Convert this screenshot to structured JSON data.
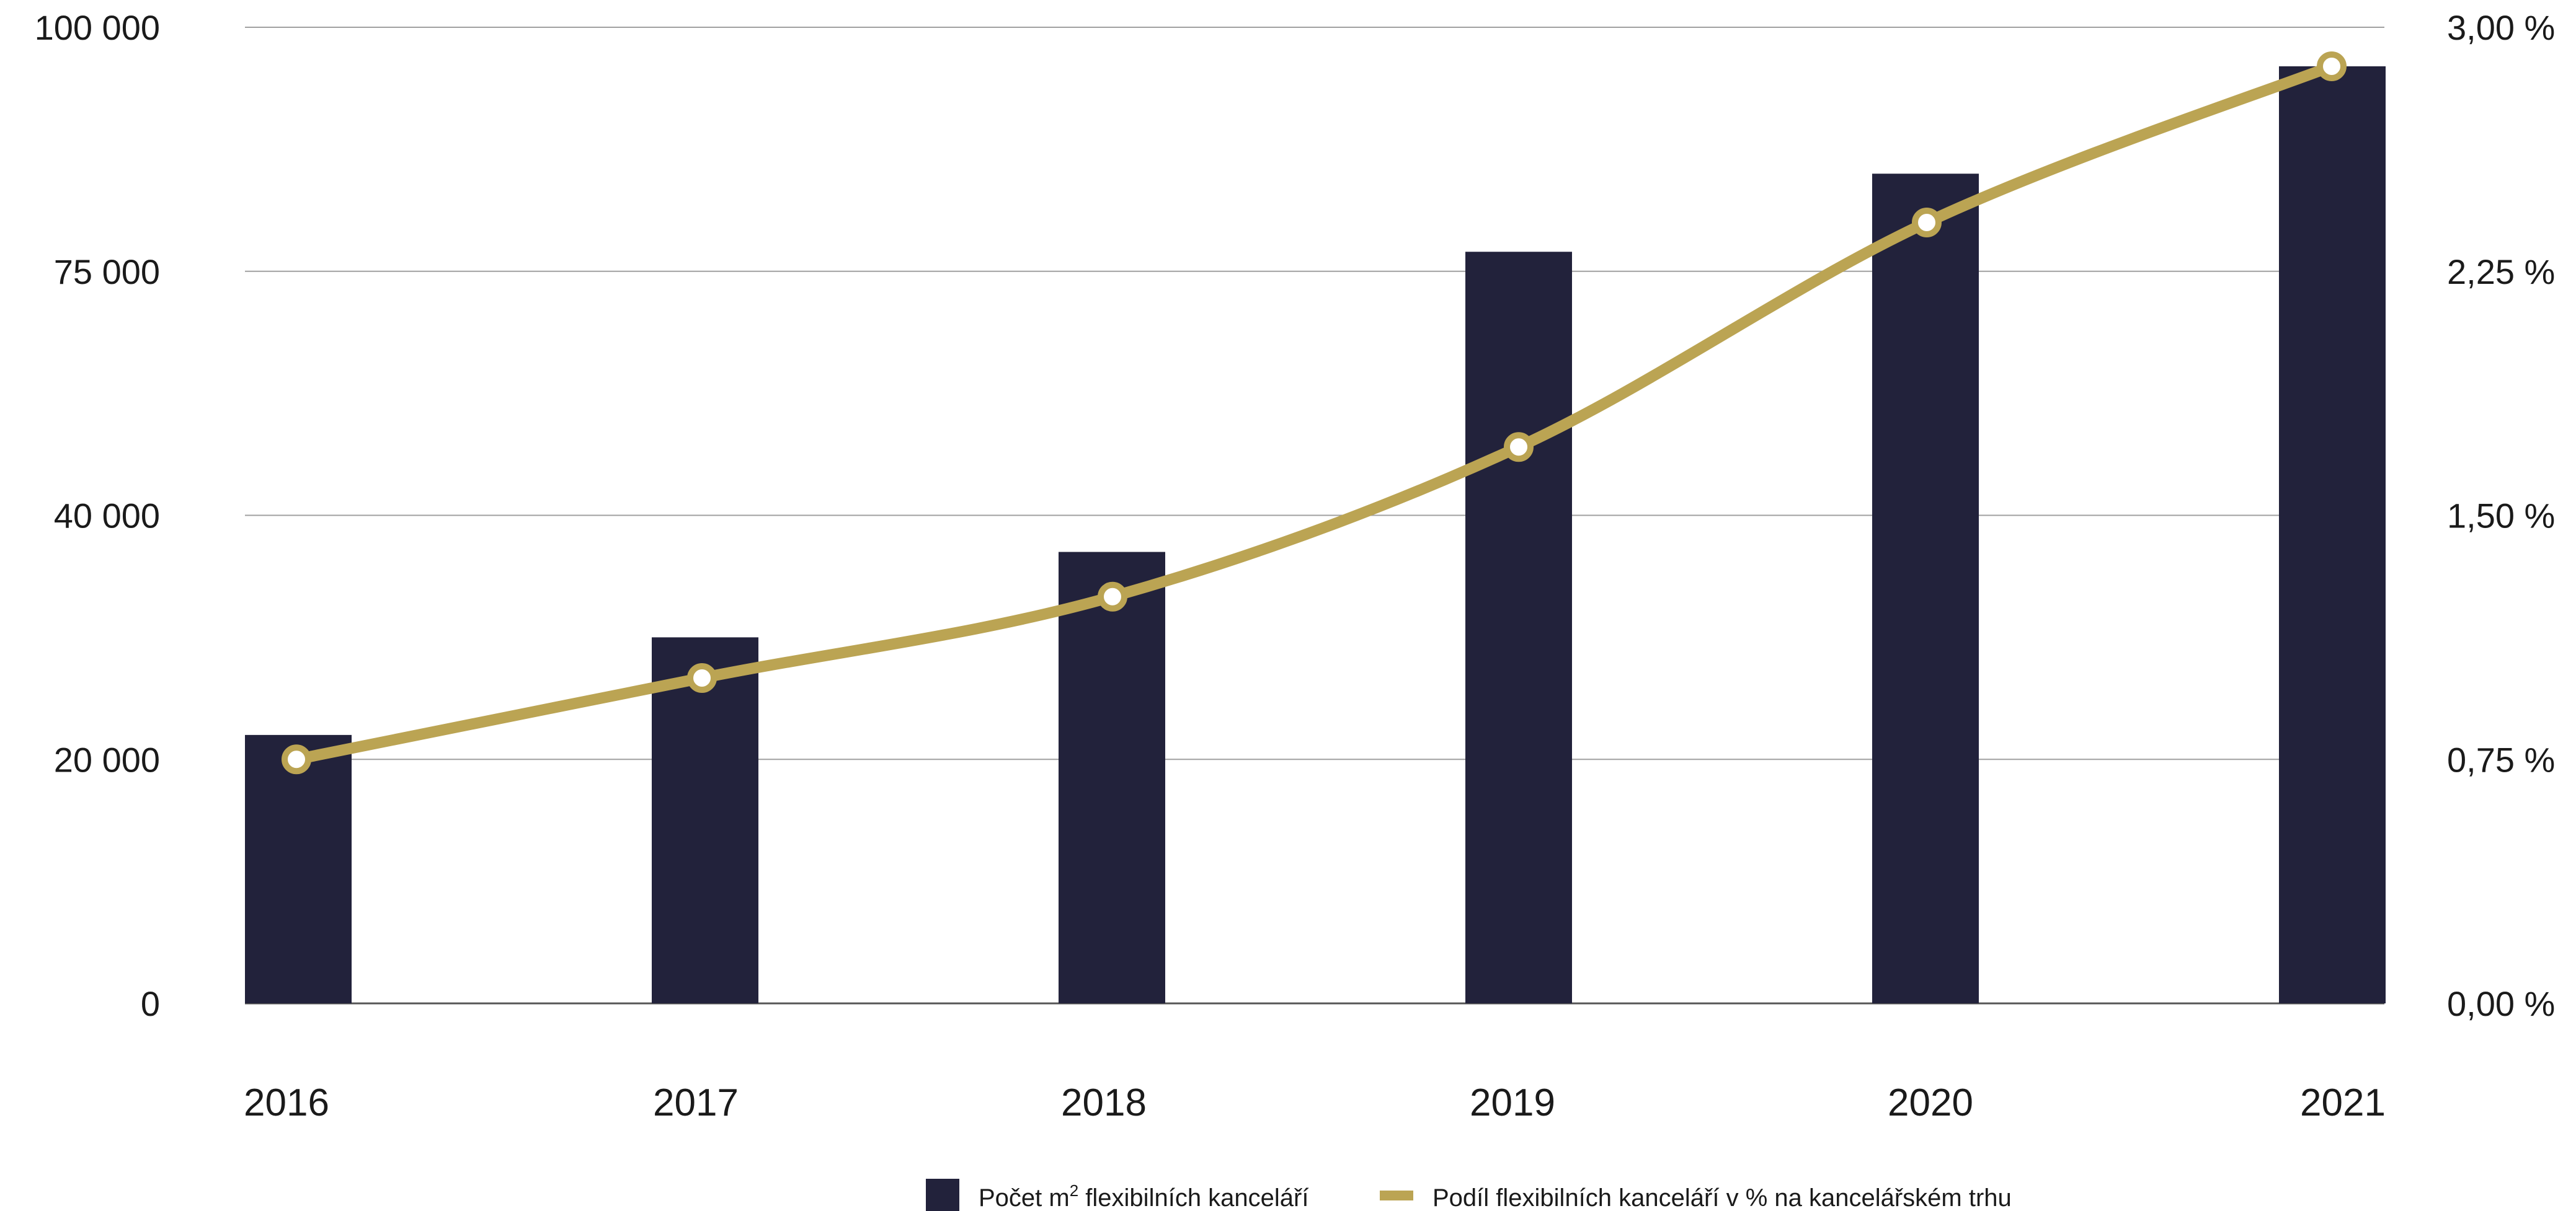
{
  "chart_data": {
    "type": "bar",
    "title": "",
    "categories": [
      "2016",
      "2017",
      "2018",
      "2019",
      "2020",
      "2021"
    ],
    "series": [
      {
        "name": "Počet m² flexibilních kanceláří",
        "kind": "bar",
        "axis": "left",
        "color": "#22223b",
        "values": [
          22000,
          30000,
          37000,
          77000,
          85000,
          96000
        ]
      },
      {
        "name": "Podíl flexibilních kanceláří v % na kancelářském trhu",
        "kind": "line",
        "axis": "right",
        "color": "#bba453",
        "values": [
          0.75,
          1.0,
          1.25,
          1.71,
          2.4,
          2.88
        ]
      }
    ],
    "left_axis": {
      "tick_labels": [
        "0",
        "20 000",
        "40 000",
        "75 000",
        "100 000"
      ],
      "tick_values": [
        0,
        20000,
        40000,
        75000,
        100000
      ]
    },
    "right_axis": {
      "tick_labels": [
        "0,00 %",
        "0,75 %",
        "1,50 %",
        "2,25 %",
        "3,00 %"
      ],
      "ylim": [
        0,
        3
      ]
    },
    "grid": true,
    "legend": {
      "position": "bottom",
      "bar_label_prefix": "Počet m",
      "bar_label_sup": "2",
      "bar_label_suffix": " flexibilních kanceláří",
      "line_label": "Podíl flexibilních kanceláří v % na kancelářském trhu"
    },
    "colors": {
      "bar": "#22223b",
      "line": "#bba453",
      "grid": "#a0a0a0",
      "marker_fill": "#ffffff"
    }
  }
}
